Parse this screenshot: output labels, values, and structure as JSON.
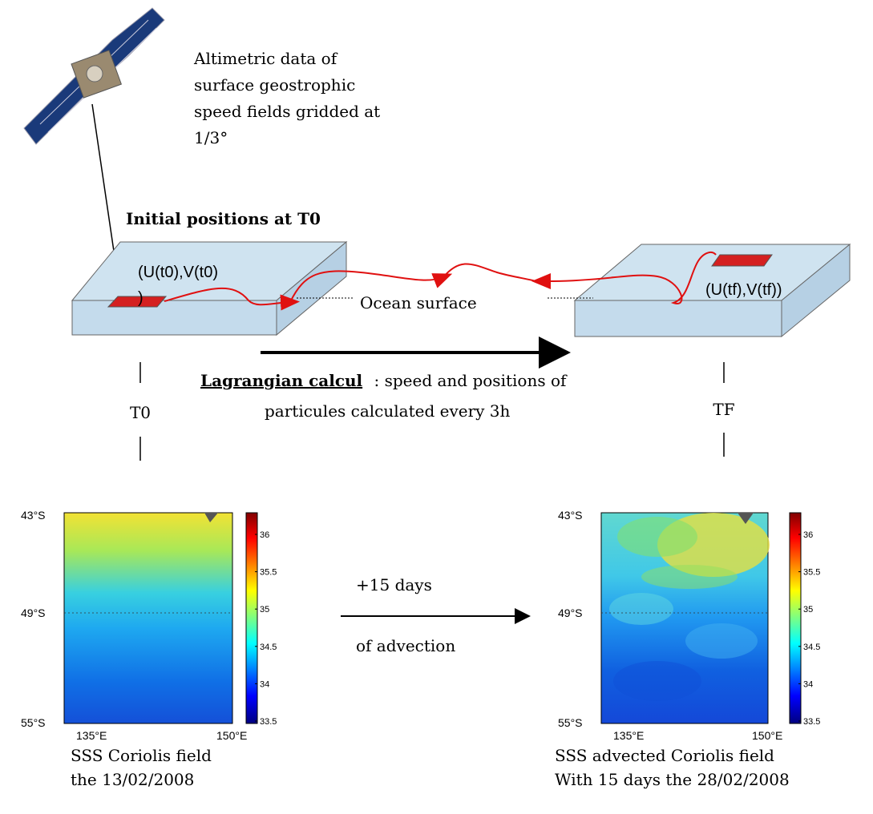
{
  "satellite_note": {
    "lines": [
      "Altimetric data of",
      "surface geostrophic",
      "speed fields gridded at",
      "1/3°"
    ]
  },
  "initial_label": "Initial positions at T0",
  "left_plate": {
    "label_lines": [
      "(U(t0),V(t0)",
      ")"
    ]
  },
  "ocean_label": "Ocean surface",
  "right_plate": {
    "label": "(U(tf),V(tf))"
  },
  "lagrangian": {
    "title": "Lagrangian calcul",
    "lines": [
      ": speed and positions of",
      "particules calculated every 3h"
    ]
  },
  "time_labels": {
    "start": "T0",
    "end": "TF"
  },
  "advection": {
    "lines": [
      "+15 days",
      "of advection"
    ]
  },
  "maps": [
    {
      "lat_labels": [
        "43°S",
        "49°S",
        "55°S"
      ],
      "lon_labels": [
        "135°E",
        "150°E"
      ],
      "colorbar_ticks": [
        "36",
        "35.5",
        "35",
        "34.5",
        "34",
        "33.5"
      ],
      "caption_lines": [
        "SSS Coriolis field",
        "the 13/02/2008"
      ]
    },
    {
      "lat_labels": [
        "43°S",
        "49°S",
        "55°S"
      ],
      "lon_labels": [
        "135°E",
        "150°E"
      ],
      "colorbar_ticks": [
        "36",
        "35.5",
        "35",
        "34.5",
        "34",
        "33.5"
      ],
      "caption_lines": [
        "SSS advected Coriolis field",
        "With 15 days the 28/02/2008"
      ]
    }
  ]
}
